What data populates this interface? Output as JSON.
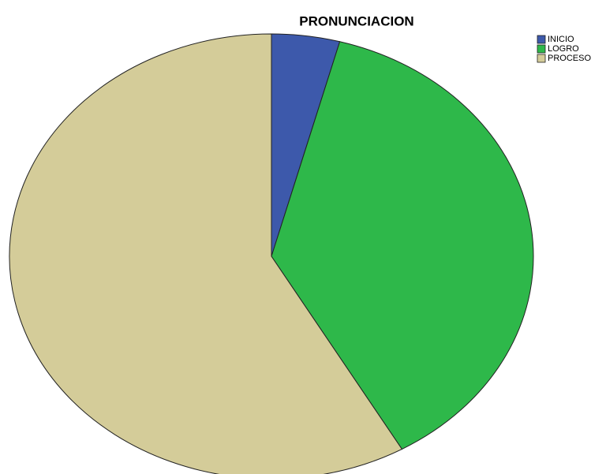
{
  "chart_data": {
    "type": "pie",
    "title": "PRONUNCIACION",
    "categories": [
      "INICIO",
      "LOGRO",
      "PROCESO"
    ],
    "values": [
      4.2,
      37.5,
      58.3
    ],
    "colors": [
      "#3d59ab",
      "#2eb84a",
      "#d4cc99"
    ],
    "legend": "top-right"
  }
}
